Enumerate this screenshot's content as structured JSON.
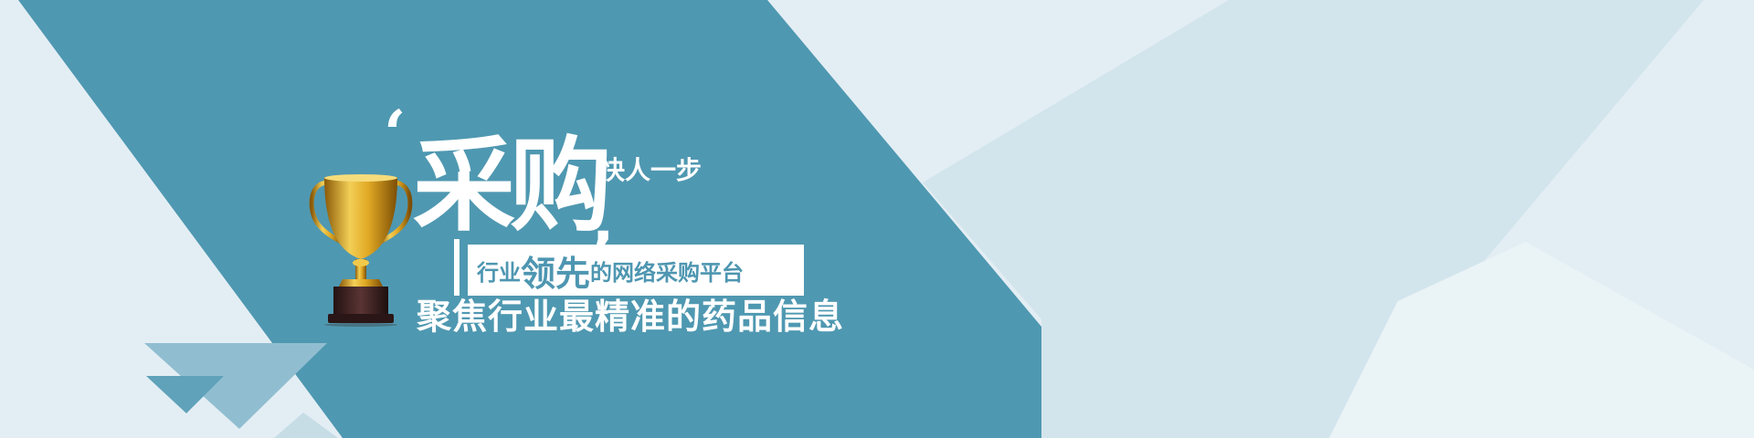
{
  "hero": {
    "quote_mark": "‘",
    "title": "采购",
    "comma": ",",
    "slogan": "快人一步"
  },
  "tagline": {
    "prefix": "行业",
    "highlight": "领先",
    "suffix": "的网络采购平台"
  },
  "subtitle": "聚焦行业最精准的药品信息",
  "colors": {
    "primary_teal": "#4f98b1",
    "background": "#e3eef4",
    "white": "#ffffff",
    "trophy_gold": "#d4a21c",
    "trophy_base": "#3b2222"
  },
  "icons": {
    "trophy": "trophy-icon"
  }
}
